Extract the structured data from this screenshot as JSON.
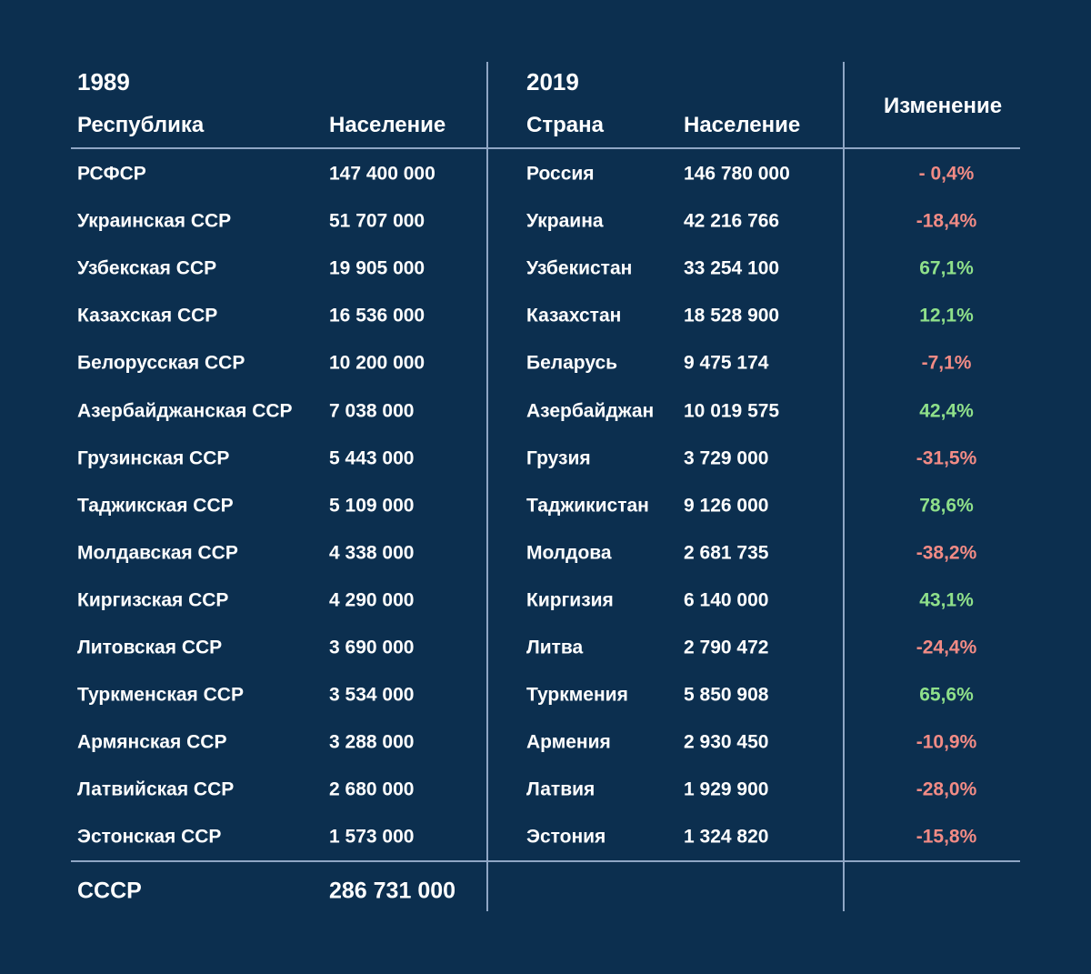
{
  "table": {
    "year_left": "1989",
    "year_right": "2019",
    "columns": [
      "Республика",
      "Население",
      "Страна",
      "Население",
      "Изменение"
    ],
    "rows": [
      [
        "РСФСР",
        "147 400 000",
        "Россия",
        "146 780 000",
        "- 0,4%"
      ],
      [
        "Украинская ССР",
        "51 707 000",
        "Украина",
        "42 216 766",
        "-18,4%"
      ],
      [
        "Узбекская ССР",
        "19 905 000",
        "Узбекистан",
        "33 254 100",
        "67,1%"
      ],
      [
        "Казахская ССР",
        "16 536 000",
        "Казахстан",
        "18 528 900",
        "12,1%"
      ],
      [
        "Белорусская ССР",
        "10 200 000",
        "Беларусь",
        "9 475 174",
        "-7,1%"
      ],
      [
        "Азербайджанская ССР",
        "7 038 000",
        "Азербайджан",
        "10 019 575",
        "42,4%"
      ],
      [
        "Грузинская ССР",
        "5 443 000",
        "Грузия",
        "3 729 000",
        "-31,5%"
      ],
      [
        "Таджикская ССР",
        "5 109 000",
        "Таджикистан",
        "9 126 000",
        "78,6%"
      ],
      [
        "Молдавская ССР",
        "4 338 000",
        "Молдова",
        "2 681 735",
        "-38,2%"
      ],
      [
        "Киргизская ССР",
        "4 290 000",
        "Киргизия",
        "6 140 000",
        "43,1%"
      ],
      [
        "Литовская ССР",
        "3 690 000",
        "Литва",
        "2 790 472",
        "-24,4%"
      ],
      [
        "Туркменская ССР",
        "3 534 000",
        "Туркмения",
        "5 850 908",
        "65,6%"
      ],
      [
        "Армянская ССР",
        "3 288 000",
        "Армения",
        "2 930 450",
        "-10,9%"
      ],
      [
        "Латвийская ССР",
        "2 680 000",
        "Латвия",
        "1 929 900",
        "-28,0%"
      ],
      [
        "Эстонская ССР",
        "1 573 000",
        "Эстония",
        "1 324 820",
        "-15,8%"
      ]
    ],
    "total": [
      "СССР",
      "286 731 000"
    ],
    "colors": {
      "background": "#0c2f4f",
      "text": "#ffffff",
      "increase": "#8fe08a",
      "decrease": "#f28b85",
      "rule": "#8fa6c4"
    }
  }
}
